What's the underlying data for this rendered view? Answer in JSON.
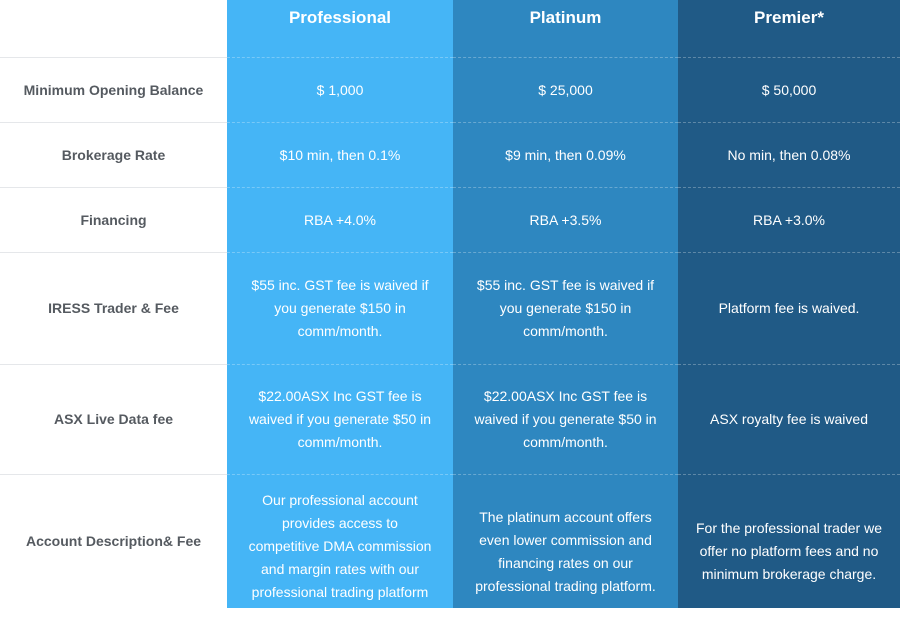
{
  "columns": [
    "Professional",
    "Platinum",
    "Premier*"
  ],
  "rows": [
    {
      "label": "Minimum Opening Balance",
      "values": [
        "$ 1,000",
        "$ 25,000",
        "$ 50,000"
      ]
    },
    {
      "label": "Brokerage Rate",
      "values": [
        "$10 min, then 0.1%",
        "$9 min, then 0.09%",
        "No min, then 0.08%"
      ]
    },
    {
      "label": "Financing",
      "values": [
        "RBA +4.0%",
        "RBA +3.5%",
        "RBA +3.0%"
      ]
    },
    {
      "label": "IRESS Trader & Fee",
      "values": [
        "$55 inc. GST fee is waived if you generate $150 in comm/month.",
        "$55 inc. GST fee is waived if you generate $150 in comm/month.",
        "Platform fee is waived."
      ]
    },
    {
      "label": "ASX Live Data fee",
      "values": [
        "$22.00ASX Inc GST fee is waived if you generate $50 in comm/month.",
        "$22.00ASX Inc GST fee is waived if you generate $50 in comm/month.",
        "ASX royalty fee is waived"
      ]
    },
    {
      "label": "Account Description& Fee",
      "values": [
        "Our professional account provides access to competitive DMA commission and margin rates with our professional trading platform options.",
        "The platinum account offers even lower commission and financing rates on our professional trading platform.",
        "For the professional trader we offer no platform fees and no minimum brokerage charge."
      ]
    }
  ],
  "colors": {
    "professional": "#45b5f6",
    "platinum": "#2e87c0",
    "premier": "#205a86",
    "label_text": "#555a60"
  }
}
